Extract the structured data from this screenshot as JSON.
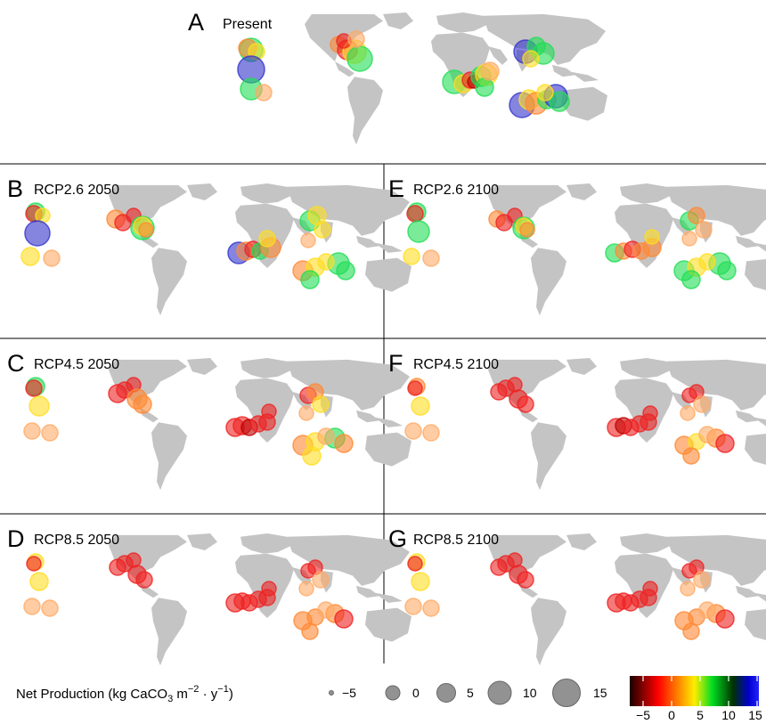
{
  "panels": [
    {
      "id": "A",
      "letter": "A",
      "label": "Present"
    },
    {
      "id": "B",
      "letter": "B",
      "label": "RCP2.6 2050"
    },
    {
      "id": "C",
      "letter": "C",
      "label": "RCP4.5 2050"
    },
    {
      "id": "D",
      "letter": "D",
      "label": "RCP8.5 2050"
    },
    {
      "id": "E",
      "letter": "E",
      "label": "RCP2.6 2100"
    },
    {
      "id": "F",
      "letter": "F",
      "label": "RCP4.5 2100"
    },
    {
      "id": "G",
      "letter": "G",
      "label": "RCP8.5 2100"
    }
  ],
  "legend": {
    "size_title": "Net Production (kg CaCO",
    "size_title_sub": "3",
    "size_title_mid": " m",
    "size_title_sup1": "−2",
    "size_title_dot": " · y",
    "size_title_sup2": "−1",
    "size_title_end": ")",
    "size_ticks": [
      "−5",
      "0",
      "5",
      "10",
      "15"
    ],
    "color_ticks": [
      "−5",
      "0",
      "5",
      "10",
      "15"
    ],
    "color_scale": [
      "#220000",
      "#ff0000",
      "#ffd000",
      "#ffff33",
      "#00cc33",
      "#0000cc",
      "#1a1aff"
    ]
  },
  "colors": {
    "land": "#c4c4c4",
    "divider": "#000000",
    "bubble_opacity": 0.6
  }
}
